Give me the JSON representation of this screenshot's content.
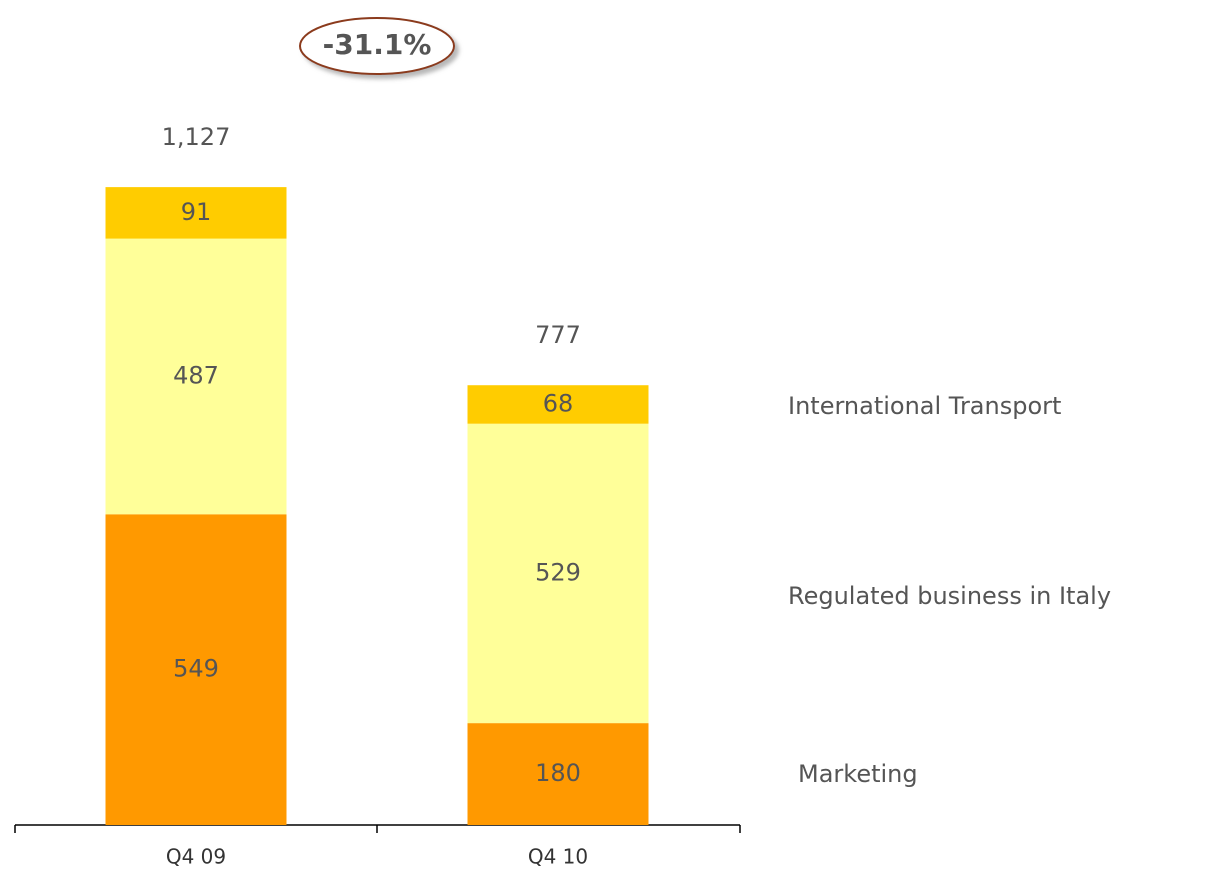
{
  "chart_data": {
    "type": "stacked_bar",
    "annotation": "-31.1%",
    "categories": [
      "Q4 09",
      "Q4 10"
    ],
    "series": [
      {
        "name": "Marketing",
        "color": "#ff9900",
        "values": [
          549,
          180
        ]
      },
      {
        "name": "Regulated business in Italy",
        "color": "#ffff99",
        "values": [
          487,
          529
        ]
      },
      {
        "name": "International Transport",
        "color": "#ffcc00",
        "values": [
          91,
          68
        ]
      }
    ],
    "totals": [
      1127,
      777
    ],
    "total_labels": [
      "1,127",
      "777"
    ]
  }
}
